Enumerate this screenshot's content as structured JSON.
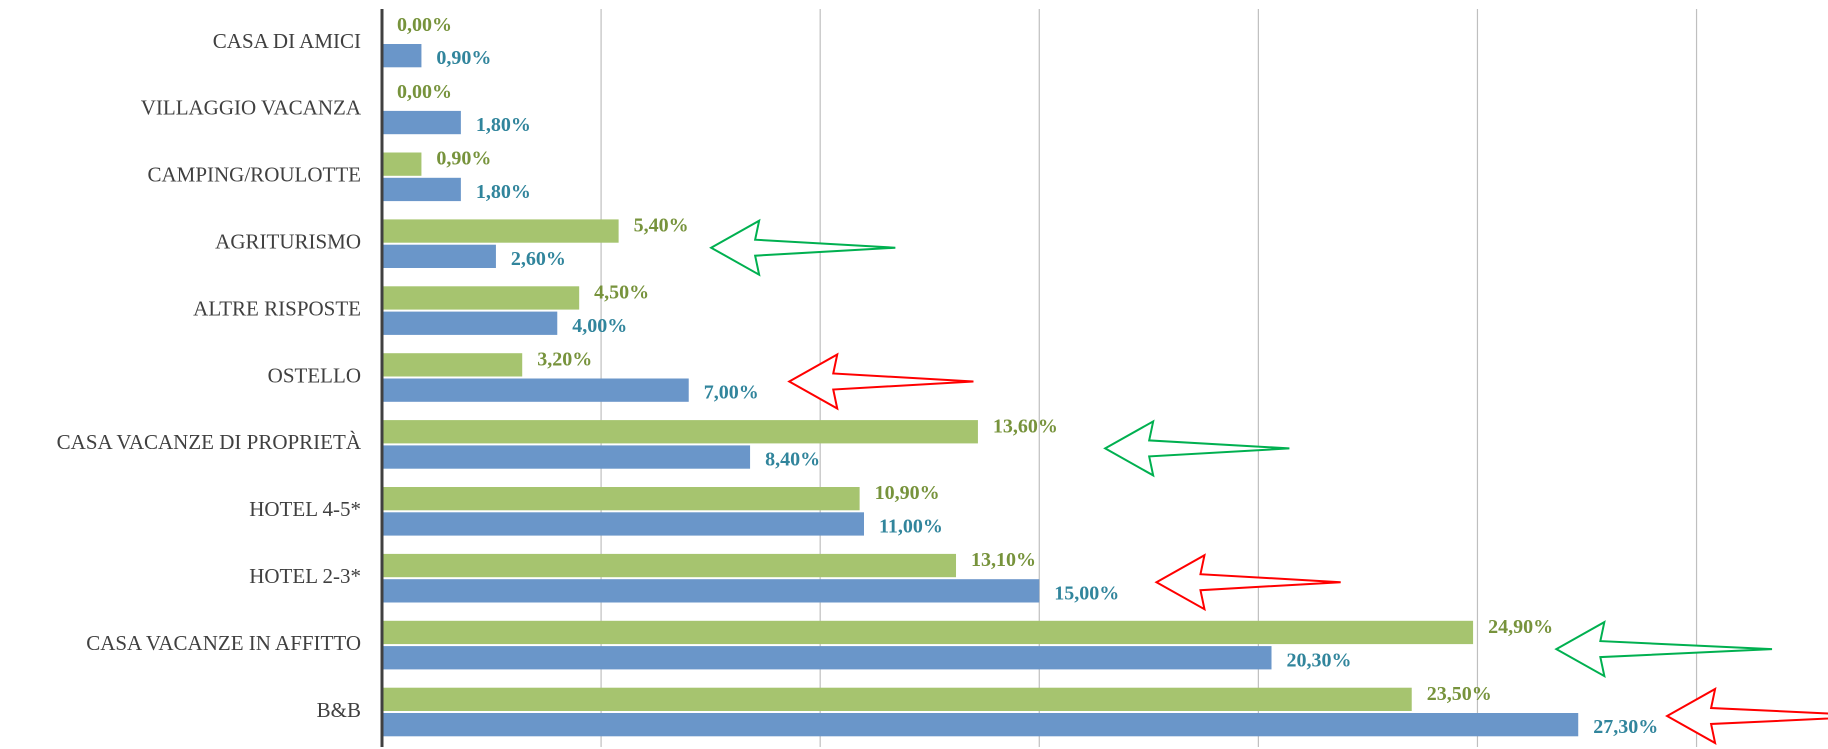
{
  "chart_data": {
    "type": "bar",
    "orientation": "horizontal",
    "categories": [
      "CASA DI AMICI",
      "VILLAGGIO VACANZA",
      "CAMPING/ROULOTTE",
      "AGRITURISMO",
      "ALTRE RISPOSTE",
      "OSTELLO",
      "CASA VACANZE DI PROPRIETÀ",
      "HOTEL 4-5*",
      "HOTEL 2-3*",
      "CASA VACANZE IN AFFITTO",
      "B&B"
    ],
    "series": [
      {
        "color": "#a6c46f",
        "label_color": "#77933c",
        "values": [
          0,
          0,
          0.9,
          5.4,
          4.5,
          3.2,
          13.6,
          10.9,
          13.1,
          24.9,
          23.5
        ],
        "value_labels": [
          "0,00%",
          "0,00%",
          "0,90%",
          "5,40%",
          "4,50%",
          "3,20%",
          "13,60%",
          "10,90%",
          "13,10%",
          "24,90%",
          "23,50%"
        ]
      },
      {
        "color": "#6a96c9",
        "label_color": "#31859c",
        "values": [
          0.9,
          1.8,
          1.8,
          2.6,
          4.0,
          7.0,
          8.4,
          11.0,
          15.0,
          20.3,
          27.3
        ],
        "value_labels": [
          "0,90%",
          "1,80%",
          "1,80%",
          "2,60%",
          "4,00%",
          "7,00%",
          "8,40%",
          "11,00%",
          "15,00%",
          "20,30%",
          "27,30%"
        ]
      }
    ],
    "xlim": [
      0,
      33
    ],
    "xticks": [
      0,
      5,
      10,
      15,
      20,
      25,
      30
    ],
    "grid": true
  }
}
